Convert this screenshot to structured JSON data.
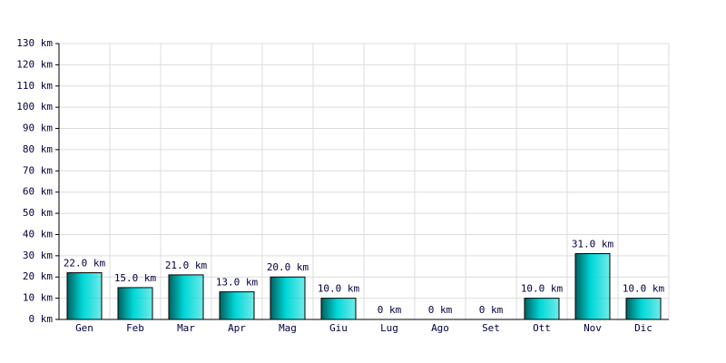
{
  "chart_data": {
    "type": "bar",
    "categories": [
      "Gen",
      "Feb",
      "Mar",
      "Apr",
      "Mag",
      "Giu",
      "Lug",
      "Ago",
      "Set",
      "Ott",
      "Nov",
      "Dic"
    ],
    "values": [
      22,
      15,
      21,
      13,
      20,
      10,
      0,
      0,
      0,
      10,
      31,
      10
    ],
    "value_labels": [
      "22.0 km",
      "15.0 km",
      "21.0 km",
      "13.0 km",
      "20.0 km",
      "10.0 km",
      "0 km",
      "0 km",
      "0 km",
      "10.0 km",
      "31.0 km",
      "10.0 km"
    ],
    "color": "#00d8d8",
    "ylim": [
      0,
      130
    ],
    "yticks": [
      {
        "value": 0,
        "label": "0 km"
      },
      {
        "value": 10,
        "label": "10 km"
      },
      {
        "value": 20,
        "label": "20 km"
      },
      {
        "value": 30,
        "label": "30 km"
      },
      {
        "value": 40,
        "label": "40 km"
      },
      {
        "value": 50,
        "label": "50 km"
      },
      {
        "value": 60,
        "label": "60 km"
      },
      {
        "value": 70,
        "label": "70 km"
      },
      {
        "value": 80,
        "label": "80 km"
      },
      {
        "value": 90,
        "label": "90 km"
      },
      {
        "value": 100,
        "label": "100 km"
      },
      {
        "value": 110,
        "label": "110 km"
      },
      {
        "value": 120,
        "label": "120 km"
      },
      {
        "value": 130,
        "label": "130 km"
      }
    ],
    "grid": true
  }
}
